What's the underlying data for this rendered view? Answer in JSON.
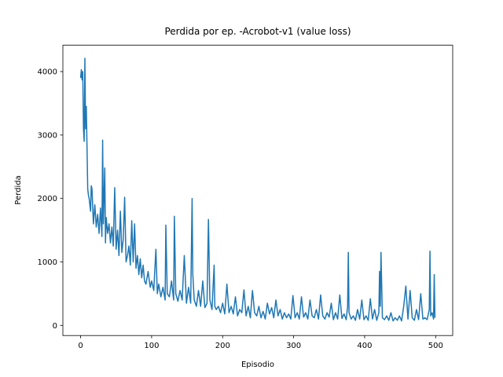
{
  "chart_data": {
    "type": "line",
    "title": "Perdida por ep. -Acrobot-v1 (value loss)",
    "xlabel": "Episodio",
    "ylabel": "Perdida",
    "x": [
      0,
      1,
      2,
      3,
      4,
      5,
      6,
      7,
      8,
      9,
      10,
      11,
      12,
      14,
      15,
      16,
      18,
      20,
      22,
      24,
      26,
      28,
      30,
      31,
      32,
      34,
      35,
      36,
      38,
      40,
      42,
      44,
      46,
      48,
      50,
      52,
      54,
      56,
      58,
      60,
      62,
      64,
      66,
      68,
      70,
      72,
      74,
      76,
      78,
      80,
      82,
      84,
      86,
      88,
      90,
      92,
      95,
      98,
      100,
      103,
      106,
      108,
      110,
      113,
      116,
      119,
      120,
      122,
      125,
      128,
      131,
      132,
      134,
      137,
      140,
      143,
      146,
      149,
      152,
      155,
      157,
      158,
      160,
      163,
      166,
      169,
      172,
      175,
      178,
      180,
      182,
      185,
      188,
      189,
      191,
      194,
      197,
      200,
      203,
      206,
      209,
      212,
      215,
      218,
      221,
      224,
      227,
      230,
      233,
      236,
      239,
      242,
      245,
      248,
      251,
      254,
      257,
      260,
      263,
      266,
      269,
      272,
      275,
      278,
      281,
      284,
      287,
      290,
      293,
      296,
      299,
      302,
      305,
      308,
      311,
      314,
      317,
      320,
      323,
      326,
      329,
      332,
      335,
      338,
      341,
      344,
      347,
      350,
      353,
      356,
      359,
      362,
      365,
      368,
      371,
      374,
      376,
      377,
      378,
      381,
      384,
      387,
      390,
      393,
      396,
      399,
      402,
      405,
      408,
      411,
      414,
      417,
      420,
      421,
      422,
      423,
      425,
      428,
      431,
      434,
      437,
      440,
      443,
      446,
      449,
      452,
      455,
      458,
      461,
      464,
      467,
      470,
      473,
      476,
      479,
      482,
      485,
      488,
      491,
      492,
      493,
      495,
      497,
      498,
      499
    ],
    "series": [
      {
        "name": "value loss",
        "color": "#1f77b4",
        "values": [
          3900,
          4030,
          3870,
          4000,
          3100,
          2900,
          4210,
          3100,
          3450,
          2800,
          2150,
          2050,
          2000,
          1800,
          2200,
          2150,
          1600,
          1900,
          1550,
          1750,
          1450,
          1850,
          1400,
          2920,
          1600,
          2480,
          1300,
          1700,
          1450,
          1600,
          1300,
          1550,
          1250,
          2170,
          1200,
          1500,
          1100,
          1800,
          1150,
          1350,
          2020,
          1000,
          1100,
          1250,
          950,
          1650,
          1000,
          1600,
          900,
          1100,
          800,
          1050,
          750,
          950,
          700,
          650,
          850,
          600,
          700,
          550,
          1200,
          500,
          650,
          450,
          600,
          400,
          1580,
          500,
          450,
          700,
          400,
          1720,
          500,
          380,
          550,
          400,
          1100,
          350,
          600,
          350,
          2000,
          800,
          400,
          300,
          550,
          300,
          700,
          280,
          350,
          1670,
          400,
          250,
          950,
          300,
          250,
          300,
          200,
          350,
          180,
          650,
          200,
          300,
          180,
          450,
          150,
          250,
          200,
          560,
          150,
          300,
          120,
          550,
          200,
          150,
          300,
          120,
          220,
          100,
          350,
          180,
          280,
          120,
          400,
          150,
          250,
          100,
          200,
          120,
          180,
          100,
          470,
          120,
          200,
          100,
          450,
          130,
          200,
          100,
          400,
          150,
          120,
          250,
          100,
          480,
          150,
          100,
          200,
          130,
          350,
          90,
          200,
          100,
          480,
          110,
          180,
          90,
          300,
          1150,
          200,
          100,
          150,
          80,
          250,
          100,
          400,
          90,
          150,
          80,
          420,
          100,
          250,
          80,
          200,
          850,
          300,
          1150,
          120,
          90,
          150,
          80,
          200,
          70,
          120,
          80,
          150,
          70,
          300,
          620,
          100,
          550,
          120,
          80,
          250,
          90,
          500,
          100,
          120,
          90,
          250,
          1170,
          150,
          200,
          100,
          800,
          120
        ]
      }
    ],
    "xlim": [
      -25,
      524
    ],
    "ylim": [
      -160,
      4415
    ],
    "xticks": [
      0,
      100,
      200,
      300,
      400,
      500
    ],
    "yticks": [
      0,
      1000,
      2000,
      3000,
      4000
    ],
    "grid": false
  }
}
